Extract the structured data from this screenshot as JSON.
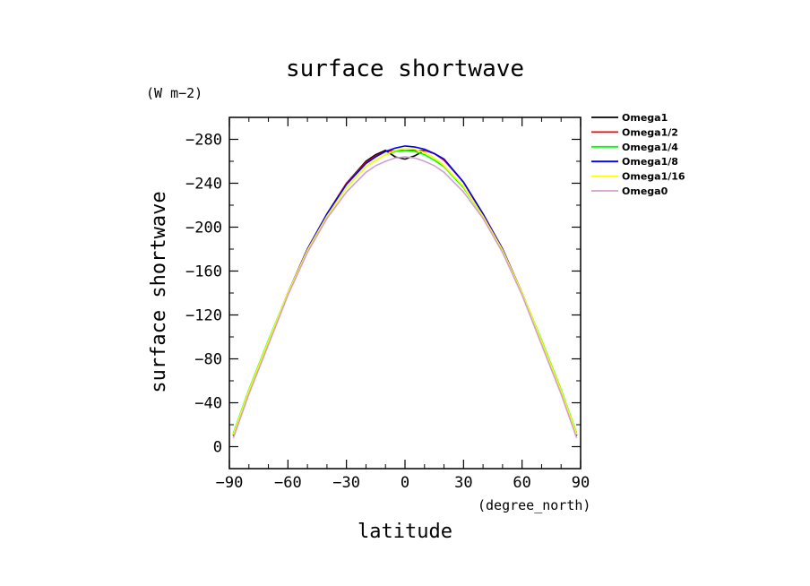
{
  "chart_data": {
    "type": "line",
    "title": "surface shortwave",
    "xlabel": "latitude",
    "ylabel": "surface shortwave",
    "x_units": "(degree_north)",
    "y_units": "(W m−2)",
    "xlim": [
      -90,
      90
    ],
    "ylim": [
      20,
      -300
    ],
    "y_inverted": true,
    "xticks": [
      -90,
      -60,
      -30,
      0,
      30,
      60,
      90
    ],
    "xtick_labels": [
      "−90",
      "−60",
      "−30",
      "0",
      "30",
      "60",
      "90"
    ],
    "yticks": [
      0,
      -40,
      -80,
      -120,
      -160,
      -200,
      -240,
      -280
    ],
    "ytick_labels": [
      "0",
      "−40",
      "−80",
      "−120",
      "−160",
      "−200",
      "−240",
      "−280"
    ],
    "grid": false,
    "legend_position": "right",
    "x": [
      -88,
      -80,
      -70,
      -60,
      -50,
      -40,
      -30,
      -20,
      -15,
      -10,
      -5,
      0,
      5,
      10,
      15,
      20,
      30,
      40,
      50,
      60,
      70,
      80,
      88
    ],
    "series": [
      {
        "name": "Omega1",
        "color": "#000000",
        "values": [
          -10,
          -50,
          -95,
          -140,
          -180,
          -212,
          -240,
          -260,
          -266,
          -270,
          -264,
          -262,
          -265,
          -270,
          -267,
          -262,
          -241,
          -212,
          -180,
          -140,
          -95,
          -50,
          -10
        ]
      },
      {
        "name": "Omega1/2",
        "color": "#ff0000",
        "values": [
          -10,
          -50,
          -95,
          -140,
          -180,
          -212,
          -240,
          -259,
          -265,
          -269,
          -270,
          -270,
          -270,
          -270,
          -267,
          -261,
          -241,
          -212,
          -180,
          -140,
          -95,
          -50,
          -10
        ]
      },
      {
        "name": "Omega1/4",
        "color": "#00ff00",
        "values": [
          -12,
          -52,
          -97,
          -140,
          -179,
          -210,
          -236,
          -255,
          -261,
          -266,
          -269,
          -270,
          -269,
          -266,
          -261,
          -255,
          -236,
          -210,
          -179,
          -140,
          -97,
          -52,
          -12
        ]
      },
      {
        "name": "Omega1/8",
        "color": "#0000ff",
        "values": [
          -10,
          -50,
          -95,
          -140,
          -180,
          -212,
          -239,
          -258,
          -264,
          -269,
          -272,
          -274,
          -273,
          -271,
          -267,
          -262,
          -241,
          -212,
          -180,
          -140,
          -95,
          -50,
          -10
        ]
      },
      {
        "name": "Omega1/16",
        "color": "#ffff00",
        "values": [
          -11,
          -51,
          -96,
          -140,
          -179,
          -210,
          -236,
          -255,
          -261,
          -266,
          -270,
          -272,
          -271,
          -268,
          -263,
          -256,
          -237,
          -210,
          -179,
          -140,
          -96,
          -51,
          -11
        ]
      },
      {
        "name": "Omega0",
        "color": "#d29fd2",
        "values": [
          -8,
          -48,
          -93,
          -138,
          -177,
          -208,
          -232,
          -250,
          -256,
          -260,
          -263,
          -264,
          -263,
          -260,
          -256,
          -250,
          -232,
          -208,
          -177,
          -138,
          -93,
          -48,
          -8
        ]
      }
    ]
  }
}
